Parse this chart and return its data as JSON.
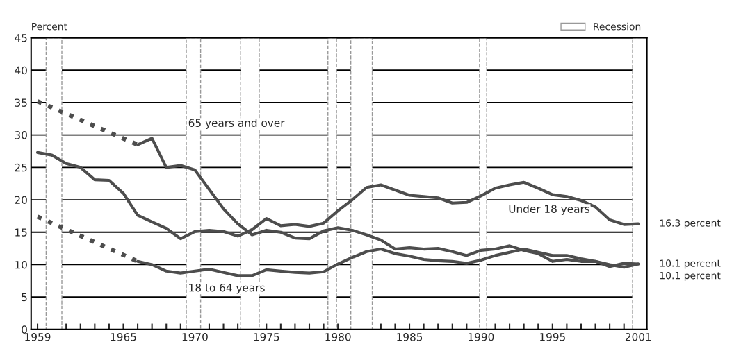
{
  "chart_data": {
    "type": "line",
    "ylabel": "Percent",
    "xlim": [
      1958.55,
      2001.6
    ],
    "ylim": [
      0,
      45
    ],
    "yticks": [
      0,
      5,
      10,
      15,
      20,
      25,
      30,
      35,
      40,
      45
    ],
    "xticks": [
      1959,
      {
        "value": 1960,
        "label": null
      },
      {
        "value": 1961,
        "label": null
      },
      {
        "value": 1962,
        "label": null
      },
      {
        "value": 1963,
        "label": null
      },
      {
        "value": 1964,
        "label": null
      },
      1965,
      {
        "value": 1966,
        "label": null
      },
      {
        "value": 1967,
        "label": null
      },
      {
        "value": 1968,
        "label": null
      },
      {
        "value": 1969,
        "label": null
      },
      1970,
      {
        "value": 1971,
        "label": null
      },
      {
        "value": 1972,
        "label": null
      },
      {
        "value": 1973,
        "label": null
      },
      {
        "value": 1974,
        "label": null
      },
      1975,
      {
        "value": 1976,
        "label": null
      },
      {
        "value": 1977,
        "label": null
      },
      {
        "value": 1978,
        "label": null
      },
      {
        "value": 1979,
        "label": null
      },
      1980,
      {
        "value": 1981,
        "label": null
      },
      {
        "value": 1982,
        "label": null
      },
      {
        "value": 1983,
        "label": null
      },
      {
        "value": 1984,
        "label": null
      },
      1985,
      {
        "value": 1986,
        "label": null
      },
      {
        "value": 1987,
        "label": null
      },
      {
        "value": 1988,
        "label": null
      },
      {
        "value": 1989,
        "label": null
      },
      1990,
      {
        "value": 1991,
        "label": null
      },
      {
        "value": 1992,
        "label": null
      },
      {
        "value": 1993,
        "label": null
      },
      {
        "value": 1994,
        "label": null
      },
      1995,
      {
        "value": 1996,
        "label": null
      },
      {
        "value": 1997,
        "label": null
      },
      {
        "value": 1998,
        "label": null
      },
      {
        "value": 1999,
        "label": null
      },
      {
        "value": 2000,
        "label": null
      },
      2001
    ],
    "grid": "y",
    "legend": "top right",
    "series": [
      {
        "color": "#4d4d4d",
        "line_style": "solid",
        "x": [
          1959,
          1960,
          1961,
          1962,
          1963,
          1964,
          1965,
          1966,
          1967,
          1968,
          1969,
          1970,
          1971,
          1972,
          1973,
          1974,
          1975,
          1976,
          1977,
          1978,
          1979,
          1980,
          1981,
          1982,
          1983,
          1984,
          1985,
          1986,
          1987,
          1988,
          1989,
          1990,
          1991,
          1992,
          1993,
          1994,
          1995,
          1996,
          1997,
          1998,
          1999,
          2000,
          2001
        ],
        "values": [
          27.3,
          26.9,
          25.6,
          25.0,
          23.1,
          23.0,
          21.0,
          17.6,
          16.6,
          15.6,
          14.0,
          15.1,
          15.3,
          15.1,
          14.4,
          15.4,
          17.1,
          16.0,
          16.2,
          15.9,
          16.4,
          18.3,
          20.0,
          21.9,
          22.3,
          21.5,
          20.7,
          20.5,
          20.3,
          19.5,
          19.6,
          20.6,
          21.8,
          22.3,
          22.7,
          21.8,
          20.8,
          20.5,
          19.9,
          18.9,
          16.9,
          16.2,
          16.3
        ]
      },
      {
        "color": "#4d4d4d",
        "line_style": "dotted",
        "x": [
          1959,
          1966
        ],
        "values": [
          35.2,
          28.5
        ]
      },
      {
        "color": "#4d4d4d",
        "line_style": "solid",
        "x": [
          1966,
          1967,
          1968,
          1969,
          1970,
          1971,
          1972,
          1973,
          1974,
          1975,
          1976,
          1977,
          1978,
          1979,
          1980,
          1981,
          1982,
          1983,
          1984,
          1985,
          1986,
          1987,
          1988,
          1989,
          1990,
          1991,
          1992,
          1993,
          1994,
          1995,
          1996,
          1997,
          1998,
          1999,
          2000,
          2001
        ],
        "values": [
          28.5,
          29.5,
          25.0,
          25.3,
          24.6,
          21.6,
          18.6,
          16.3,
          14.6,
          15.3,
          15.0,
          14.1,
          14.0,
          15.2,
          15.7,
          15.3,
          14.6,
          13.8,
          12.4,
          12.6,
          12.4,
          12.5,
          12.0,
          11.4,
          12.2,
          12.4,
          12.9,
          12.2,
          11.7,
          10.5,
          10.8,
          10.5,
          10.5,
          9.7,
          10.2,
          10.1
        ]
      },
      {
        "color": "#4d4d4d",
        "line_style": "dotted",
        "x": [
          1959,
          1966
        ],
        "values": [
          17.4,
          10.5
        ]
      },
      {
        "color": "#4d4d4d",
        "line_style": "solid",
        "x": [
          1966,
          1967,
          1968,
          1969,
          1970,
          1971,
          1972,
          1973,
          1974,
          1975,
          1976,
          1977,
          1978,
          1979,
          1980,
          1981,
          1982,
          1983,
          1984,
          1985,
          1986,
          1987,
          1988,
          1989,
          1990,
          1991,
          1992,
          1993,
          1994,
          1995,
          1996,
          1997,
          1998,
          1999,
          2000,
          2001
        ],
        "values": [
          10.5,
          10.0,
          9.0,
          8.7,
          9.0,
          9.3,
          8.8,
          8.3,
          8.3,
          9.2,
          9.0,
          8.8,
          8.7,
          8.9,
          10.1,
          11.1,
          12.0,
          12.4,
          11.7,
          11.3,
          10.8,
          10.6,
          10.5,
          10.2,
          10.7,
          11.4,
          11.9,
          12.4,
          11.9,
          11.4,
          11.4,
          10.9,
          10.5,
          10.0,
          9.6,
          10.1
        ]
      }
    ],
    "bands": [
      {
        "axis": "x",
        "from": 1959.6,
        "to": 1960.7,
        "label": "Recession",
        "color": "#999999"
      },
      {
        "axis": "x",
        "from": 1969.4,
        "to": 1970.4,
        "color": "#999999"
      },
      {
        "axis": "x",
        "from": 1973.2,
        "to": 1974.5,
        "color": "#999999"
      },
      {
        "axis": "x",
        "from": 1979.3,
        "to": 1979.9,
        "color": "#999999"
      },
      {
        "axis": "x",
        "from": 1980.9,
        "to": 1982.4,
        "color": "#999999"
      },
      {
        "axis": "x",
        "from": 1989.9,
        "to": 1990.4,
        "color": "#999999"
      },
      {
        "axis": "x",
        "from": 2000.6,
        "to": 2001.6,
        "color": "#999999"
      }
    ],
    "annotations": [
      "65 years and over",
      "Under 18 years",
      "18 to 64 years",
      "16.3 percent",
      "10.1 percent",
      "10.1 percent"
    ]
  }
}
